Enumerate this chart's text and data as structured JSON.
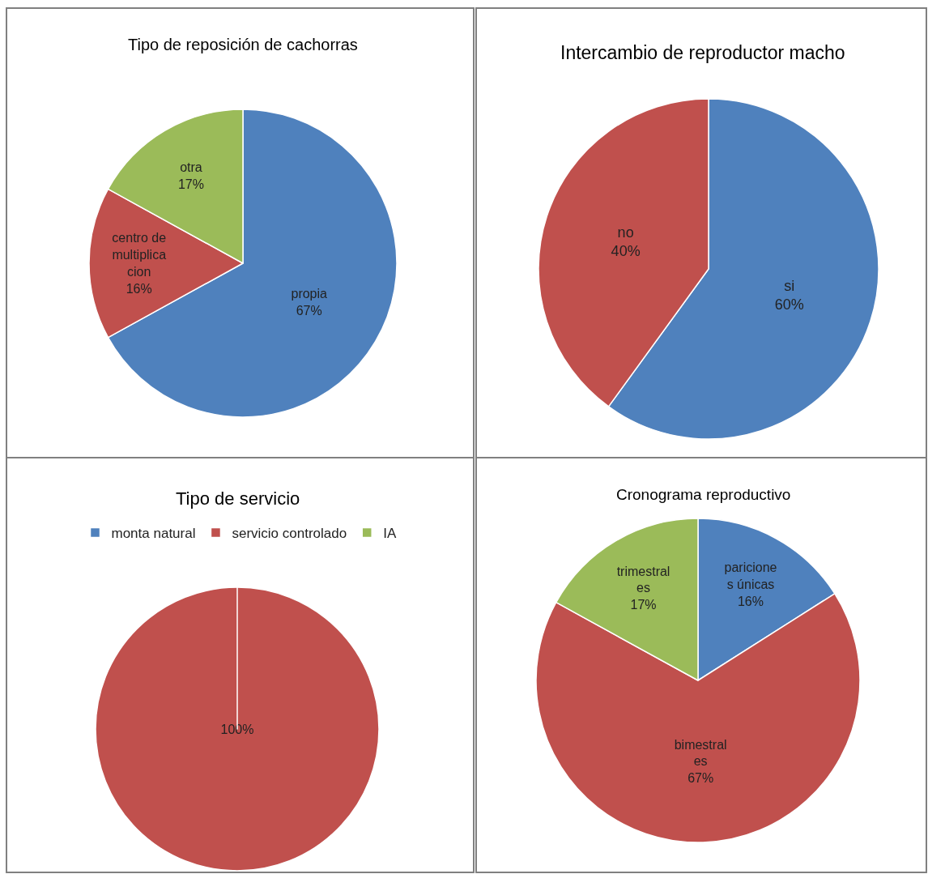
{
  "chart_data": [
    {
      "type": "pie",
      "title": "Tipo de reposición de cachorras",
      "categories": [
        "propia",
        "centro de\nmultiplica\ncion",
        "otra"
      ],
      "values": [
        67,
        16,
        17
      ],
      "colors": [
        "#4f81bd",
        "#c0504d",
        "#9bbb59"
      ],
      "value_labels": [
        "67%",
        "16%",
        "17%"
      ],
      "legend": false
    },
    {
      "type": "pie",
      "title": "Intercambio de reproductor macho",
      "categories": [
        "si",
        "no"
      ],
      "values": [
        60,
        40
      ],
      "colors": [
        "#4f81bd",
        "#c0504d"
      ],
      "value_labels": [
        "60%",
        "40%"
      ],
      "legend": false
    },
    {
      "type": "pie",
      "title": "Tipo de servicio",
      "categories": [
        "monta natural",
        "servicio controlado",
        "IA"
      ],
      "values": [
        0,
        100,
        0
      ],
      "colors": [
        "#4f81bd",
        "#c0504d",
        "#9bbb59"
      ],
      "value_labels": [
        null,
        "100%",
        null
      ],
      "legend": "top"
    },
    {
      "type": "pie",
      "title": "Cronograma reproductivo",
      "categories": [
        "paricione\ns únicas",
        "bimestral\nes",
        "trimestral\nes"
      ],
      "values": [
        16,
        67,
        17
      ],
      "colors": [
        "#4f81bd",
        "#c0504d",
        "#9bbb59"
      ],
      "value_labels": [
        "16%",
        "67%",
        "17%"
      ],
      "legend": false
    }
  ]
}
